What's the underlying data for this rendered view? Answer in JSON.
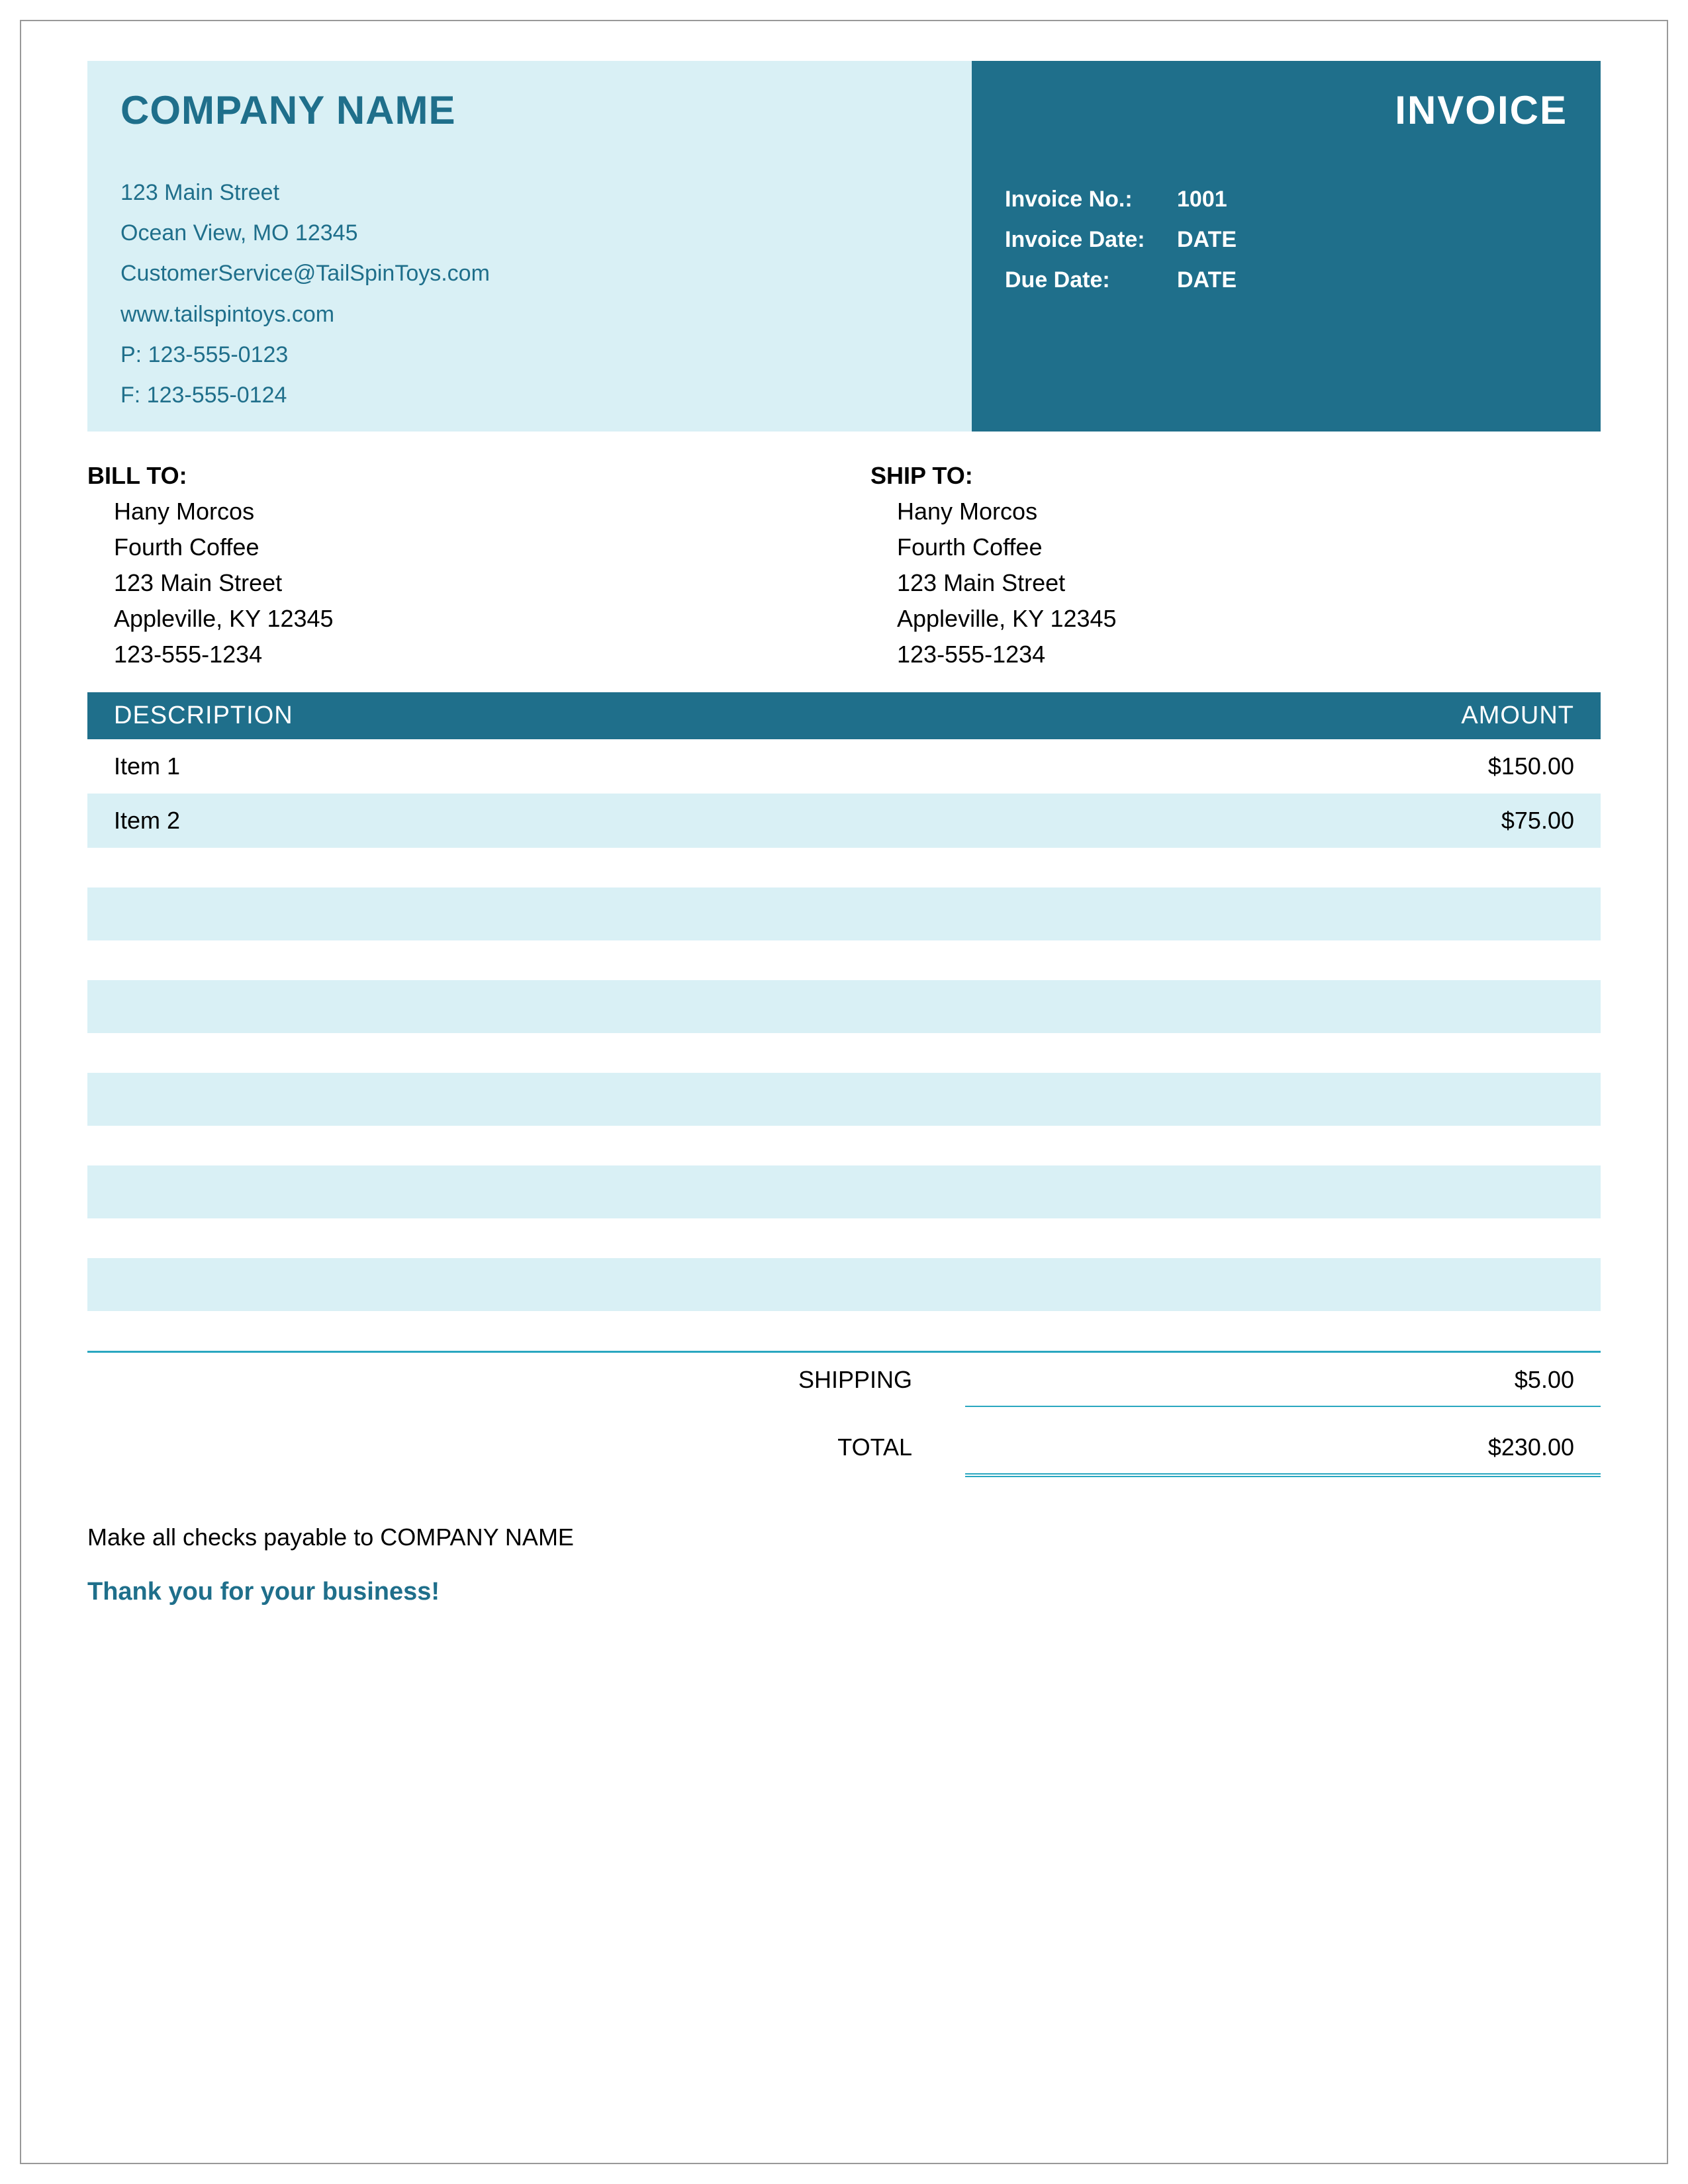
{
  "colors": {
    "brand_dark": "#1f6f8b",
    "brand_light": "#d9f0f5",
    "rule": "#2aa7c0",
    "page_bg": "#ffffff",
    "text": "#000000"
  },
  "typography": {
    "font_family": "Arial",
    "company_name_fontsize": 60,
    "invoice_title_fontsize": 60,
    "body_fontsize": 36,
    "header_row_fontsize": 38
  },
  "company": {
    "name": "COMPANY NAME",
    "street": "123 Main Street",
    "city_line": "Ocean View, MO 12345",
    "email": "CustomerService@TailSpinToys.com",
    "website": "www.tailspintoys.com",
    "phone": "P: 123-555-0123",
    "fax": "F: 123-555-0124"
  },
  "invoice": {
    "title": "INVOICE",
    "no_label": "Invoice No.:",
    "no_value": "1001",
    "date_label": "Invoice Date:",
    "date_value": "DATE",
    "due_label": "Due Date:",
    "due_value": "DATE"
  },
  "bill_to": {
    "heading": "BILL TO:",
    "name": "Hany Morcos",
    "company": "Fourth Coffee",
    "street": "123 Main Street",
    "city_line": "Appleville, KY 12345",
    "phone": "123-555-1234"
  },
  "ship_to": {
    "heading": "SHIP TO:",
    "name": "Hany Morcos",
    "company": "Fourth Coffee",
    "street": "123 Main Street",
    "city_line": "Appleville, KY 12345",
    "phone": "123-555-1234"
  },
  "columns": {
    "description": "DESCRIPTION",
    "amount": "AMOUNT"
  },
  "items": [
    {
      "description": "Item 1",
      "amount": "$150.00"
    },
    {
      "description": "Item 2",
      "amount": "$75.00"
    }
  ],
  "blank_stripe_count": 5,
  "totals": {
    "shipping_label": "SHIPPING",
    "shipping_value": "$5.00",
    "total_label": "TOTAL",
    "total_value": "$230.00"
  },
  "footer": {
    "checks_line": "Make all checks payable to COMPANY NAME",
    "thanks": "Thank you for your business!"
  }
}
